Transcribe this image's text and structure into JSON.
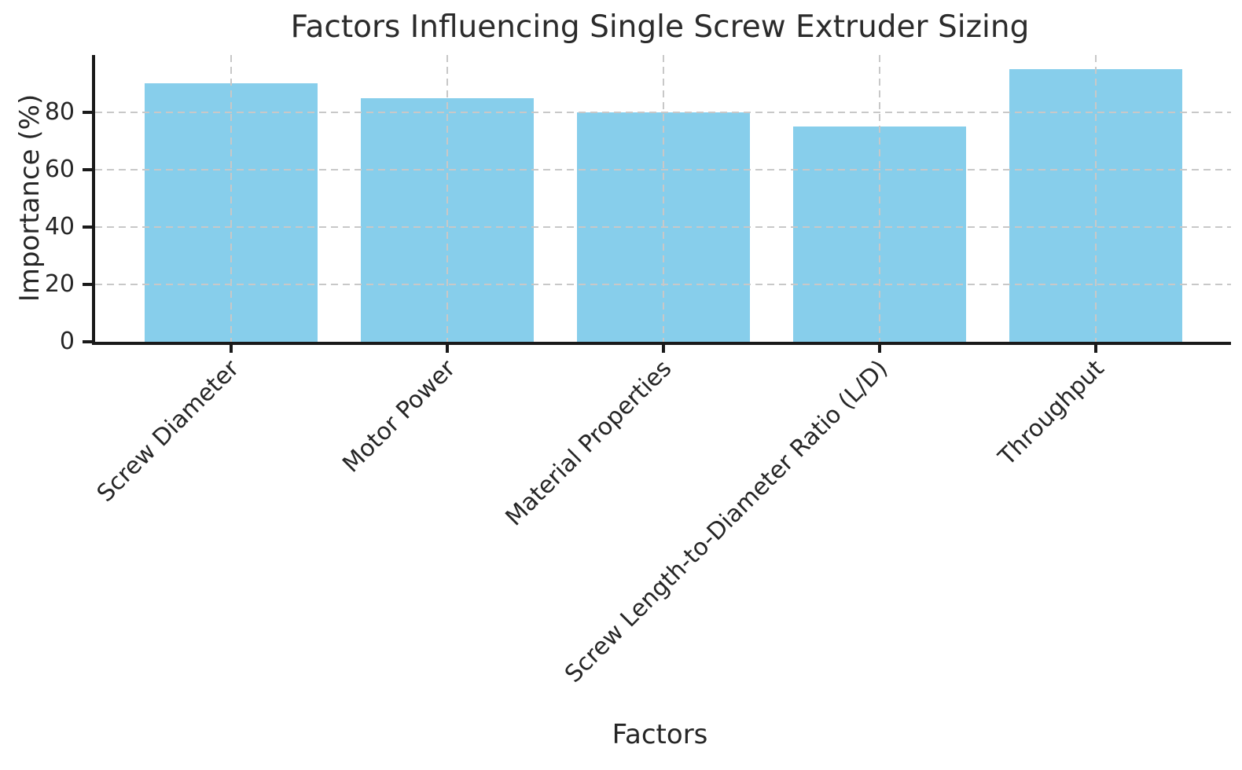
{
  "chart_data": {
    "type": "bar",
    "title": "Factors Influencing Single Screw Extruder Sizing",
    "xlabel": "Factors",
    "ylabel": "Importance (%)",
    "categories": [
      "Screw Diameter",
      "Motor Power",
      "Material Properties",
      "Screw Length-to-Diameter Ratio (L/D)",
      "Throughput"
    ],
    "values": [
      90,
      85,
      80,
      75,
      95
    ],
    "yticks": [
      0,
      20,
      40,
      60,
      80
    ],
    "ylim": [
      0,
      100
    ],
    "xtick_rotation": 45,
    "grid": "dashed, both axes, drawn over bars",
    "legend_position": "none",
    "colors": {
      "bar_fill": "#87CEEB",
      "axis_spine": "#1a1a1a",
      "gridline": "#c8c8c8",
      "text": "#262626",
      "background": "#ffffff"
    }
  }
}
